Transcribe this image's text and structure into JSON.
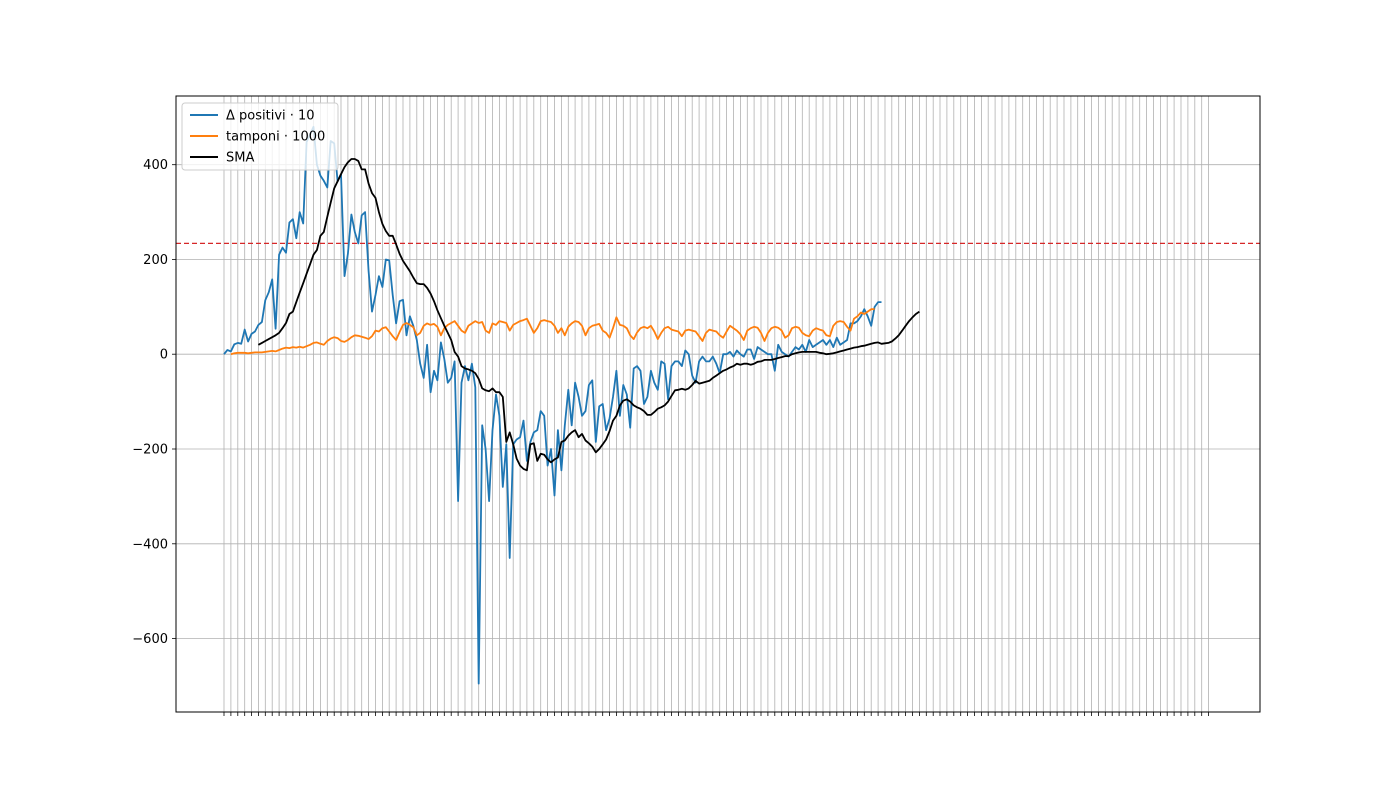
{
  "chart_data": {
    "type": "line",
    "title": "",
    "xlabel": "",
    "ylabel": "",
    "ylim": [
      -755,
      545
    ],
    "yticks": [
      -600,
      -400,
      -200,
      0,
      200,
      400
    ],
    "grid": true,
    "legend_placement": "top-left",
    "x_tick_labels_note": "dense overlapping daily date labels, illegible",
    "x_count": 288,
    "threshold": {
      "y": 234,
      "color": "#d62728",
      "style": "dashed"
    },
    "series": [
      {
        "name": "Δ positivi · 10",
        "color": "#1f77b4",
        "x_start": 0,
        "values": [
          0,
          9,
          6,
          21,
          24,
          22,
          52,
          27,
          43,
          48,
          62,
          68,
          114,
          131,
          158,
          54,
          210,
          225,
          214,
          278,
          285,
          245,
          300,
          276,
          448,
          464,
          480,
          400,
          377,
          366,
          352,
          450,
          445,
          365,
          380,
          165,
          212,
          295,
          258,
          234,
          293,
          300,
          175,
          90,
          125,
          165,
          142,
          200,
          198,
          125,
          65,
          112,
          115,
          40,
          80,
          60,
          30,
          -20,
          -50,
          20,
          -80,
          -35,
          -55,
          25,
          -10,
          -60,
          -50,
          -15,
          -310,
          -60,
          -25,
          -55,
          -20,
          -70,
          -695,
          -150,
          -200,
          -310,
          -160,
          -85,
          -130,
          -280,
          -190,
          -430,
          -190,
          -180,
          -175,
          -140,
          -225,
          -185,
          -165,
          -160,
          -120,
          -130,
          -235,
          -200,
          -298,
          -160,
          -245,
          -150,
          -75,
          -150,
          -60,
          -90,
          -130,
          -120,
          -65,
          -55,
          -185,
          -110,
          -105,
          -160,
          -135,
          -90,
          -35,
          -130,
          -65,
          -85,
          -155,
          -30,
          -25,
          -35,
          -105,
          -90,
          -35,
          -60,
          -75,
          -15,
          -20,
          -95,
          -25,
          -15,
          -15,
          -25,
          8,
          0,
          -45,
          -60,
          -15,
          -5,
          -15,
          -15,
          -5,
          -20,
          -40,
          0,
          0,
          5,
          -5,
          8,
          0,
          -5,
          10,
          10,
          -10,
          15,
          10,
          5,
          0,
          0,
          -35,
          20,
          5,
          0,
          -5,
          5,
          15,
          10,
          20,
          5,
          30,
          15,
          20,
          25,
          30,
          20,
          30,
          15,
          35,
          20,
          25,
          30,
          65,
          65,
          70,
          80,
          95,
          80,
          60,
          100,
          110,
          110
        ]
      },
      {
        "name": "tamponi · 1000",
        "color": "#ff7f0e",
        "x_start": 2,
        "values": [
          0,
          2,
          3,
          3,
          3,
          2,
          3,
          4,
          4,
          4,
          5,
          6,
          7,
          6,
          9,
          12,
          14,
          13,
          15,
          14,
          16,
          14,
          17,
          20,
          24,
          25,
          22,
          20,
          28,
          33,
          36,
          34,
          28,
          26,
          30,
          36,
          40,
          39,
          37,
          35,
          32,
          38,
          50,
          48,
          55,
          57,
          48,
          38,
          30,
          47,
          62,
          66,
          62,
          57,
          40,
          45,
          60,
          65,
          62,
          64,
          58,
          40,
          55,
          62,
          66,
          70,
          60,
          50,
          45,
          60,
          65,
          70,
          66,
          68,
          50,
          45,
          65,
          62,
          70,
          68,
          66,
          50,
          62,
          66,
          70,
          72,
          75,
          60,
          45,
          55,
          70,
          72,
          70,
          68,
          60,
          45,
          55,
          40,
          58,
          65,
          70,
          68,
          60,
          40,
          55,
          60,
          62,
          64,
          50,
          45,
          35,
          55,
          78,
          62,
          60,
          55,
          40,
          32,
          46,
          55,
          58,
          55,
          60,
          48,
          32,
          45,
          55,
          58,
          52,
          50,
          48,
          38,
          50,
          52,
          50,
          48,
          38,
          28,
          45,
          52,
          50,
          48,
          40,
          35,
          48,
          60,
          55,
          50,
          42,
          30,
          50,
          55,
          58,
          56,
          45,
          28,
          45,
          55,
          58,
          56,
          50,
          35,
          40,
          55,
          58,
          56,
          45,
          40,
          38,
          50,
          55,
          52,
          50,
          40,
          38,
          60,
          68,
          70,
          68,
          58,
          50,
          75,
          80,
          88,
          85,
          90,
          95,
          95
        ]
      },
      {
        "name": "SMA",
        "color": "#000000",
        "x_start": 10,
        "values": [
          20,
          24,
          28,
          32,
          36,
          40,
          45,
          55,
          66,
          85,
          90,
          110,
          130,
          150,
          170,
          190,
          210,
          220,
          250,
          258,
          290,
          320,
          350,
          365,
          380,
          395,
          405,
          412,
          412,
          408,
          390,
          390,
          360,
          340,
          330,
          300,
          275,
          260,
          250,
          250,
          232,
          212,
          197,
          186,
          175,
          162,
          150,
          148,
          148,
          140,
          128,
          112,
          93,
          76,
          60,
          45,
          30,
          5,
          -5,
          -25,
          -30,
          -32,
          -35,
          -40,
          -52,
          -72,
          -76,
          -78,
          -72,
          -80,
          -80,
          -90,
          -185,
          -165,
          -190,
          -220,
          -235,
          -242,
          -245,
          -190,
          -188,
          -225,
          -210,
          -212,
          -222,
          -228,
          -222,
          -218,
          -185,
          -182,
          -172,
          -165,
          -160,
          -175,
          -168,
          -182,
          -188,
          -195,
          -207,
          -200,
          -190,
          -180,
          -162,
          -140,
          -130,
          -108,
          -98,
          -95,
          -100,
          -108,
          -112,
          -115,
          -120,
          -128,
          -128,
          -122,
          -115,
          -112,
          -108,
          -100,
          -88,
          -76,
          -75,
          -73,
          -75,
          -72,
          -65,
          -56,
          -62,
          -60,
          -58,
          -56,
          -50,
          -45,
          -40,
          -35,
          -32,
          -28,
          -25,
          -20,
          -22,
          -20,
          -20,
          -22,
          -20,
          -16,
          -15,
          -12,
          -12,
          -12,
          -10,
          -8,
          -6,
          -4,
          -4,
          0,
          2,
          4,
          5,
          5,
          5,
          5,
          5,
          3,
          2,
          0,
          1,
          2,
          4,
          6,
          8,
          10,
          12,
          14,
          15,
          17,
          18,
          20,
          22,
          24,
          25,
          22,
          23,
          24,
          27,
          33,
          40,
          50,
          60,
          70,
          78,
          85,
          90
        ]
      }
    ]
  }
}
